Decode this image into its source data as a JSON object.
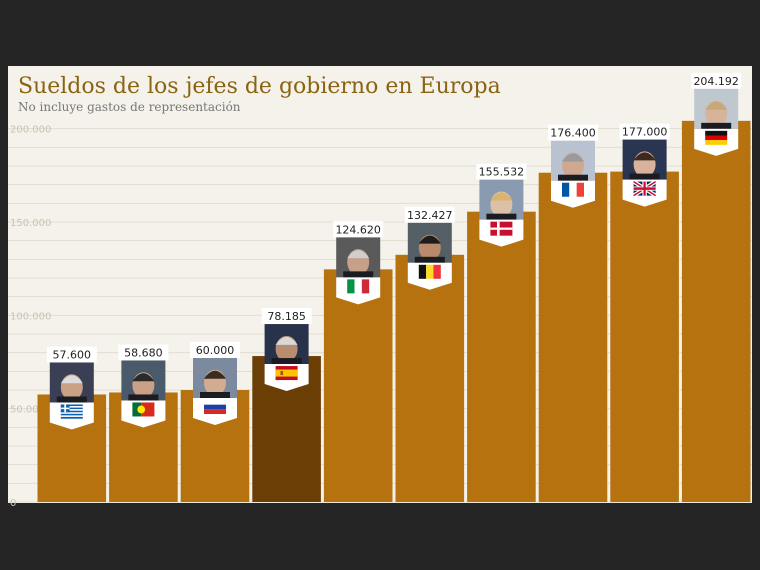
{
  "header": {
    "title": "Sueldos de los jefes de gobierno en Europa",
    "subtitle": "No incluye gastos de representación"
  },
  "colors": {
    "background": "#f4f2ea",
    "bar": "#b5720f",
    "bar_highlight": "#6a3e05",
    "title": "#8a6412",
    "gridline": "#e2ddd0",
    "frame": "#252525"
  },
  "chart_data": {
    "type": "bar",
    "title": "Sueldos de los jefes de gobierno en Europa",
    "subtitle": "No incluye gastos de representación",
    "ylim": [
      0,
      210000
    ],
    "yticks": [
      0,
      50000,
      100000,
      150000,
      200000
    ],
    "ytick_labels": [
      "0",
      "50.000",
      "100.000",
      "150.000",
      "200.000"
    ],
    "grid": true,
    "categories": [
      "Grecia",
      "Portugal",
      "Rusia",
      "España",
      "Italia",
      "Bélgica",
      "Dinamarca",
      "Francia",
      "Reino Unido",
      "Alemania"
    ],
    "values": [
      57600,
      58680,
      60000,
      78185,
      124620,
      132427,
      155532,
      176400,
      177000,
      204192
    ],
    "value_labels": [
      "57.600",
      "58.680",
      "60.000",
      "78.185",
      "124.620",
      "132.427",
      "155.532",
      "176.400",
      "177.000",
      "204.192"
    ],
    "flag_icons": [
      "greece-flag-icon",
      "portugal-flag-icon",
      "russia-flag-icon",
      "spain-flag-icon",
      "italy-flag-icon",
      "belgium-flag-icon",
      "denmark-flag-icon",
      "france-flag-icon",
      "uk-flag-icon",
      "germany-flag-icon"
    ],
    "highlighted": [
      "España"
    ]
  }
}
